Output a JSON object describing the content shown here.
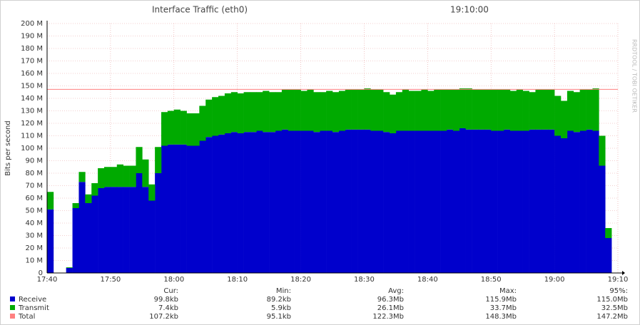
{
  "chart_data": {
    "type": "stacked-area",
    "title": "Interface Traffic (eth0)",
    "subtitle": "19:10:00",
    "watermark": "RRDTOOL / TOBI OETIKER",
    "y_label": "Bits per second",
    "x": [
      "17:40",
      "17:41",
      "17:42",
      "17:43",
      "17:44",
      "17:45",
      "17:46",
      "17:47",
      "17:48",
      "17:49",
      "17:50",
      "17:51",
      "17:52",
      "17:53",
      "17:54",
      "17:55",
      "17:56",
      "17:57",
      "17:58",
      "17:59",
      "18:00",
      "18:01",
      "18:02",
      "18:03",
      "18:04",
      "18:05",
      "18:06",
      "18:07",
      "18:08",
      "18:09",
      "18:10",
      "18:11",
      "18:12",
      "18:13",
      "18:14",
      "18:15",
      "18:16",
      "18:17",
      "18:18",
      "18:19",
      "18:20",
      "18:21",
      "18:22",
      "18:23",
      "18:24",
      "18:25",
      "18:26",
      "18:27",
      "18:28",
      "18:29",
      "18:30",
      "18:31",
      "18:32",
      "18:33",
      "18:34",
      "18:35",
      "18:36",
      "18:37",
      "18:38",
      "18:39",
      "18:40",
      "18:41",
      "18:42",
      "18:43",
      "18:44",
      "18:45",
      "18:46",
      "18:47",
      "18:48",
      "18:49",
      "18:50",
      "18:51",
      "18:52",
      "18:53",
      "18:54",
      "18:55",
      "18:56",
      "18:57",
      "18:58",
      "18:59",
      "19:00",
      "19:01",
      "19:02",
      "19:03",
      "19:04",
      "19:05",
      "19:06",
      "19:07",
      "19:08",
      "19:09"
    ],
    "series": [
      {
        "name": "Receive",
        "color": "#0000cc",
        "values": [
          51,
          null,
          null,
          4,
          52,
          73,
          56,
          62,
          68,
          69,
          69,
          69,
          69,
          69,
          80,
          69,
          58,
          80,
          102,
          103,
          103,
          103,
          102,
          102,
          106,
          109,
          110,
          111,
          112,
          113,
          112,
          113,
          113,
          114,
          113,
          113,
          114,
          115,
          114,
          114,
          114,
          114,
          113,
          114,
          114,
          113,
          114,
          115,
          115,
          115,
          115,
          114,
          114,
          113,
          112,
          114,
          114,
          114,
          114,
          114,
          114,
          114,
          114,
          115,
          114,
          116,
          115,
          115,
          115,
          115,
          114,
          114,
          115,
          114,
          114,
          114,
          115,
          115,
          115,
          115,
          110,
          108,
          114,
          113,
          114,
          115,
          114,
          86,
          28,
          null
        ]
      },
      {
        "name": "Transmit",
        "color": "#00aa00",
        "values": [
          14,
          null,
          null,
          0.5,
          4,
          8,
          7,
          10,
          16,
          16,
          16,
          18,
          17,
          17,
          21,
          22,
          13,
          21,
          27,
          27,
          28,
          27,
          26,
          26,
          28,
          30,
          31,
          31,
          32,
          32,
          32,
          32,
          32,
          31,
          33,
          32,
          31,
          32,
          33,
          33,
          32,
          33,
          32,
          31,
          32,
          32,
          32,
          32,
          32,
          32,
          33,
          33,
          33,
          32,
          31,
          31,
          33,
          32,
          32,
          33,
          32,
          33,
          33,
          32,
          33,
          32,
          33,
          32,
          32,
          32,
          33,
          33,
          32,
          32,
          33,
          32,
          30,
          32,
          32,
          32,
          32,
          30,
          32,
          32,
          33,
          32,
          34,
          24,
          8,
          null
        ]
      }
    ],
    "total": {
      "name": "Total",
      "color": "#ff8080",
      "hrule": 147.2
    },
    "xlim": [
      "17:40",
      "19:10"
    ],
    "xticks": [
      "17:40",
      "17:50",
      "18:00",
      "18:10",
      "18:20",
      "18:30",
      "18:40",
      "18:50",
      "19:00",
      "19:10"
    ],
    "ylim": [
      0,
      200
    ],
    "yticks": [
      0,
      {
        "value": 10,
        "label": "10 M"
      },
      {
        "value": 20,
        "label": "20 M"
      },
      {
        "value": 30,
        "label": "30 M"
      },
      {
        "value": 40,
        "label": "40 M"
      },
      {
        "value": 50,
        "label": "50 M"
      },
      {
        "value": 60,
        "label": "60 M"
      },
      {
        "value": 70,
        "label": "70 M"
      },
      {
        "value": 80,
        "label": "80 M"
      },
      {
        "value": 90,
        "label": "90 M"
      },
      {
        "value": 100,
        "label": "100 M"
      },
      {
        "value": 110,
        "label": "110 M"
      },
      {
        "value": 120,
        "label": "120 M"
      },
      {
        "value": 130,
        "label": "130 M"
      },
      {
        "value": 140,
        "label": "140 M"
      },
      {
        "value": 150,
        "label": "150 M"
      },
      {
        "value": 160,
        "label": "160 M"
      },
      {
        "value": 170,
        "label": "170 M"
      },
      {
        "value": 180,
        "label": "180 M"
      },
      {
        "value": 190,
        "label": "190 M"
      },
      {
        "value": 200,
        "label": "200 M"
      }
    ],
    "grid": true,
    "stats": {
      "columns": [
        "Cur:",
        "Min:",
        "Avg:",
        "Max:",
        "95%:"
      ],
      "rows": [
        [
          "99.8kb",
          "89.2kb",
          "96.3Mb",
          "115.9Mb",
          "115.0Mb"
        ],
        [
          "7.4kb",
          "5.9kb",
          "26.1Mb",
          "33.7Mb",
          "32.5Mb"
        ],
        [
          "107.2kb",
          "95.1kb",
          "122.3Mb",
          "148.3Mb",
          "147.2Mb"
        ]
      ]
    }
  }
}
